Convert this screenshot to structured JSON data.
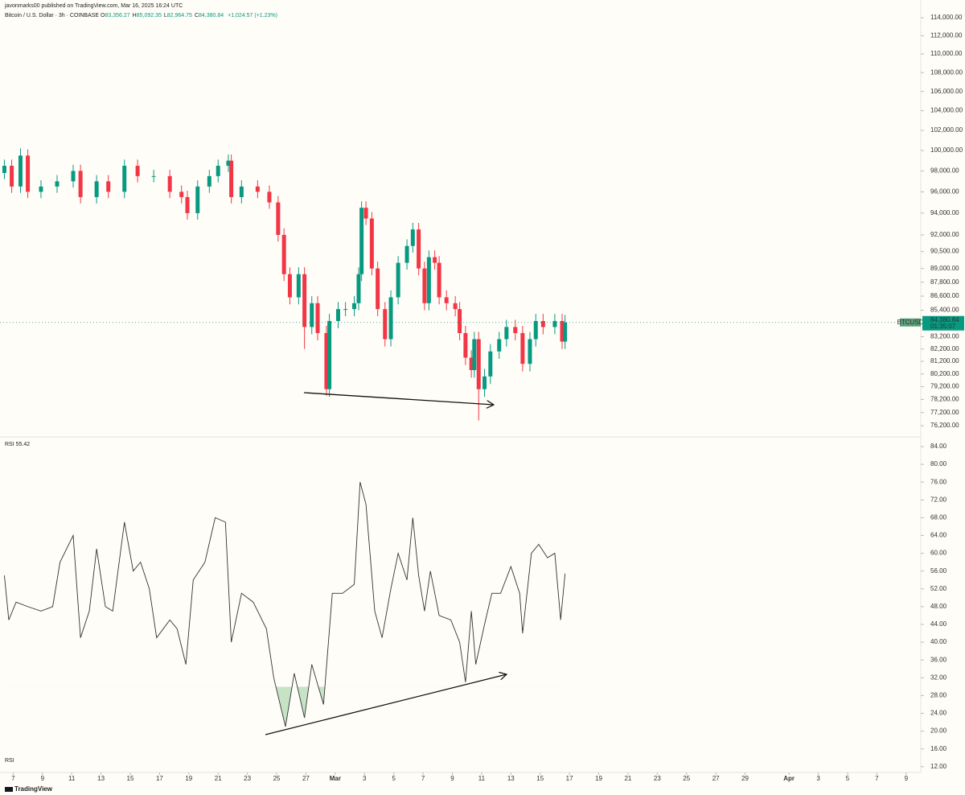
{
  "header": {
    "publisher": "javonmarks00 published on TradingView.com, Mar 16, 2025 16:24 UTC",
    "symbol": "Bitcoin / U.S. Dollar · 3h · COINBASE",
    "ohlc": [
      {
        "label": "O",
        "value": "83,356.27"
      },
      {
        "label": "H",
        "value": "85,092.35"
      },
      {
        "label": "L",
        "value": "82,964.75"
      },
      {
        "label": "C",
        "value": "84,380.84"
      }
    ],
    "change": "+1,024.57 (+1.23%)"
  },
  "footer": {
    "logo": "TradingView",
    "pane_label": "RSI"
  },
  "chart_data": [
    {
      "type": "candlestick",
      "log_scale": true,
      "up_color": "#089981",
      "down_color": "#f23645",
      "symbol_tag": "BTCUSD",
      "last_price_label": "84,380.84",
      "countdown": "01:35:07",
      "xlim": [
        37.1,
        100.0
      ],
      "ylim": [
        75540,
        115560
      ],
      "yticks": [
        {
          "value": 114000,
          "label": "114,000.00"
        },
        {
          "value": 112000,
          "label": "112,000.00"
        },
        {
          "value": 110000,
          "label": "110,000.00"
        },
        {
          "value": 108000,
          "label": "108,000.00"
        },
        {
          "value": 106000,
          "label": "106,000.00"
        },
        {
          "value": 104000,
          "label": "104,000.00"
        },
        {
          "value": 102000,
          "label": "102,000.00"
        },
        {
          "value": 100000,
          "label": "100,000.00"
        },
        {
          "value": 98000,
          "label": "98,000.00"
        },
        {
          "value": 96000,
          "label": "96,000.00"
        },
        {
          "value": 94000,
          "label": "94,000.00"
        },
        {
          "value": 92000,
          "label": "92,000.00"
        },
        {
          "value": 90500,
          "label": "90,500.00"
        },
        {
          "value": 89000,
          "label": "89,000.00"
        },
        {
          "value": 87800,
          "label": "87,800.00"
        },
        {
          "value": 86600,
          "label": "86,600.00"
        },
        {
          "value": 85400,
          "label": "85,400.00"
        },
        {
          "value": 83200,
          "label": "83,200.00"
        },
        {
          "value": 82200,
          "label": "82,200.00"
        },
        {
          "value": 81200,
          "label": "81,200.00"
        },
        {
          "value": 80200,
          "label": "80,200.00"
        },
        {
          "value": 79200,
          "label": "79,200.00"
        },
        {
          "value": 78200,
          "label": "78,200.00"
        },
        {
          "value": 77200,
          "label": "77,200.00"
        },
        {
          "value": 76200,
          "label": "76,200.00"
        }
      ],
      "x": [
        37.4,
        37.9,
        38.5,
        39.0,
        39.9,
        41.0,
        42.1,
        42.6,
        43.7,
        44.5,
        45.6,
        46.5,
        47.6,
        48.7,
        49.5,
        49.9,
        50.6,
        51.4,
        52.0,
        52.7,
        52.9,
        53.6,
        54.7,
        55.5,
        56.1,
        56.5,
        56.9,
        57.5,
        57.9,
        58.4,
        58.8,
        59.4,
        59.6,
        60.2,
        60.7,
        61.3,
        61.6,
        61.8,
        62.1,
        62.5,
        62.9,
        63.4,
        63.8,
        64.3,
        64.9,
        65.3,
        65.7,
        66.1,
        66.4,
        66.8,
        67.1,
        67.6,
        68.2,
        68.5,
        68.9,
        69.3,
        69.5,
        69.8,
        70.2,
        70.6,
        71.2,
        71.7,
        72.3,
        72.8,
        73.3,
        73.7,
        74.2,
        75.0,
        75.5,
        75.7
      ],
      "open": [
        97800,
        98500,
        96500,
        99500,
        96000,
        96500,
        97000,
        98000,
        95500,
        97000,
        96000,
        98500,
        97500,
        97500,
        96000,
        95500,
        94000,
        96500,
        97500,
        98500,
        99000,
        95500,
        96500,
        96000,
        95000,
        92000,
        88500,
        86500,
        88500,
        84000,
        86000,
        83500,
        79000,
        84500,
        85500,
        85500,
        86000,
        88500,
        94500,
        93500,
        89000,
        85500,
        83000,
        86500,
        89500,
        91000,
        92500,
        89000,
        86000,
        90000,
        89500,
        86500,
        86000,
        85500,
        83500,
        81500,
        80500,
        83000,
        79000,
        80000,
        82000,
        83000,
        84000,
        83500,
        81000,
        83000,
        84500,
        84000,
        84500,
        82800
      ],
      "high": [
        99100,
        99100,
        100200,
        100100,
        97100,
        97600,
        98600,
        98600,
        97600,
        97600,
        99100,
        99100,
        98100,
        98100,
        96600,
        96100,
        97100,
        98100,
        99100,
        99600,
        99600,
        97100,
        97100,
        96600,
        95600,
        92600,
        89100,
        89100,
        89100,
        86600,
        86600,
        84100,
        85100,
        86100,
        86100,
        86600,
        89100,
        95100,
        95100,
        94100,
        89600,
        86100,
        87100,
        90100,
        91600,
        93100,
        93100,
        89600,
        90600,
        90600,
        90100,
        87100,
        86600,
        86100,
        84100,
        82100,
        83600,
        83600,
        80600,
        82600,
        83600,
        84600,
        84600,
        84100,
        83600,
        85100,
        85100,
        85100,
        85100,
        85000
      ],
      "low": [
        97200,
        95900,
        95900,
        95400,
        95400,
        95900,
        96400,
        94900,
        94900,
        95400,
        95400,
        96900,
        96900,
        95400,
        94900,
        93400,
        93400,
        95900,
        96900,
        97900,
        94900,
        94900,
        95400,
        94400,
        91400,
        87900,
        85900,
        85900,
        82200,
        83400,
        82900,
        78500,
        78400,
        83900,
        84900,
        84900,
        85400,
        87900,
        92900,
        88400,
        84900,
        82400,
        82400,
        85900,
        88900,
        90400,
        88400,
        85400,
        85400,
        88900,
        85900,
        85400,
        84900,
        82900,
        80900,
        79900,
        79900,
        76600,
        78400,
        79400,
        81400,
        82400,
        82900,
        80400,
        80400,
        82400,
        83400,
        83400,
        82200,
        82200
      ],
      "close": [
        98500,
        96500,
        99500,
        96000,
        96500,
        97000,
        98000,
        95500,
        97000,
        96000,
        98500,
        97500,
        97500,
        96000,
        95500,
        94000,
        96500,
        97500,
        98500,
        99000,
        95500,
        96500,
        96000,
        95000,
        92000,
        88500,
        86500,
        88500,
        84000,
        86000,
        83500,
        79000,
        84500,
        85500,
        85500,
        86000,
        88500,
        94500,
        93500,
        89000,
        85500,
        83000,
        86500,
        89500,
        91000,
        92500,
        89000,
        86000,
        90000,
        89500,
        86500,
        86000,
        85500,
        83500,
        81500,
        80500,
        83000,
        79000,
        80000,
        82000,
        83000,
        84000,
        83500,
        81000,
        83000,
        84500,
        84000,
        84500,
        82800,
        84380.84
      ]
    },
    {
      "type": "line",
      "name": "RSI",
      "last_value": "55.42",
      "color": "#333333",
      "oversold_level": 30,
      "oversold_fill": "#b9dcb9",
      "xlim": [
        37.1,
        100.0
      ],
      "ylim": [
        10.7,
        85.8
      ],
      "yticks": [
        {
          "value": 84,
          "label": "84.00"
        },
        {
          "value": 80,
          "label": "80.00"
        },
        {
          "value": 76,
          "label": "76.00"
        },
        {
          "value": 72,
          "label": "72.00"
        },
        {
          "value": 68,
          "label": "68.00"
        },
        {
          "value": 64,
          "label": "64.00"
        },
        {
          "value": 60,
          "label": "60.00"
        },
        {
          "value": 56,
          "label": "56.00"
        },
        {
          "value": 52,
          "label": "52.00"
        },
        {
          "value": 48,
          "label": "48.00"
        },
        {
          "value": 44,
          "label": "44.00"
        },
        {
          "value": 40,
          "label": "40.00"
        },
        {
          "value": 36,
          "label": "36.00"
        },
        {
          "value": 32,
          "label": "32.00"
        },
        {
          "value": 28,
          "label": "28.00"
        },
        {
          "value": 24,
          "label": "24.00"
        },
        {
          "value": 20,
          "label": "20.00"
        },
        {
          "value": 16,
          "label": "16.00"
        },
        {
          "value": 12,
          "label": "12.00"
        }
      ],
      "xticks": [
        {
          "value": 38,
          "label": "7"
        },
        {
          "value": 40,
          "label": "9"
        },
        {
          "value": 42,
          "label": "11"
        },
        {
          "value": 44,
          "label": "13"
        },
        {
          "value": 46,
          "label": "15"
        },
        {
          "value": 48,
          "label": "17"
        },
        {
          "value": 50,
          "label": "19"
        },
        {
          "value": 52,
          "label": "21"
        },
        {
          "value": 54,
          "label": "23"
        },
        {
          "value": 56,
          "label": "25"
        },
        {
          "value": 58,
          "label": "27"
        },
        {
          "value": 60,
          "label": "Mar"
        },
        {
          "value": 62,
          "label": "3"
        },
        {
          "value": 64,
          "label": "5"
        },
        {
          "value": 66,
          "label": "7"
        },
        {
          "value": 68,
          "label": "9"
        },
        {
          "value": 70,
          "label": "11"
        },
        {
          "value": 72,
          "label": "13"
        },
        {
          "value": 74,
          "label": "15"
        },
        {
          "value": 76,
          "label": "17"
        },
        {
          "value": 78,
          "label": "19"
        },
        {
          "value": 80,
          "label": "21"
        },
        {
          "value": 82,
          "label": "23"
        },
        {
          "value": 84,
          "label": "25"
        },
        {
          "value": 86,
          "label": "27"
        },
        {
          "value": 88,
          "label": "29"
        },
        {
          "value": 91,
          "label": "Apr"
        },
        {
          "value": 93,
          "label": "3"
        },
        {
          "value": 95,
          "label": "5"
        },
        {
          "value": 97,
          "label": "7"
        },
        {
          "value": 99,
          "label": "9"
        }
      ],
      "x": [
        37.4,
        37.7,
        38.2,
        39.0,
        39.9,
        40.7,
        41.2,
        42.1,
        42.6,
        43.2,
        43.7,
        44.3,
        44.8,
        45.6,
        46.2,
        46.7,
        47.3,
        47.8,
        48.7,
        49.2,
        49.8,
        50.3,
        51.1,
        51.8,
        52.5,
        52.9,
        53.6,
        54.4,
        55.3,
        55.8,
        56.6,
        57.2,
        57.9,
        58.4,
        59.2,
        59.8,
        60.5,
        61.3,
        61.7,
        62.1,
        62.7,
        63.2,
        63.8,
        64.3,
        64.9,
        65.3,
        65.7,
        66.1,
        66.5,
        67.1,
        67.9,
        68.5,
        68.9,
        69.3,
        69.6,
        70.2,
        70.7,
        71.3,
        72.0,
        72.6,
        72.8,
        73.4,
        73.9,
        74.5,
        75.0,
        75.4,
        75.7
      ],
      "values": [
        55,
        45,
        49,
        48,
        47,
        48,
        58,
        64,
        41,
        47,
        61,
        48,
        47,
        67,
        56,
        58,
        52,
        41,
        45,
        43,
        35,
        54,
        58,
        68,
        67,
        40,
        51,
        49,
        43,
        32,
        21,
        33,
        23,
        35,
        26,
        51,
        51,
        53,
        76,
        71,
        47,
        41,
        52,
        60,
        54,
        68,
        55,
        47,
        56,
        46,
        45,
        40,
        31,
        47,
        35,
        44,
        51,
        51,
        57,
        51,
        42,
        60,
        62,
        59,
        60,
        45,
        55.42
      ]
    }
  ]
}
